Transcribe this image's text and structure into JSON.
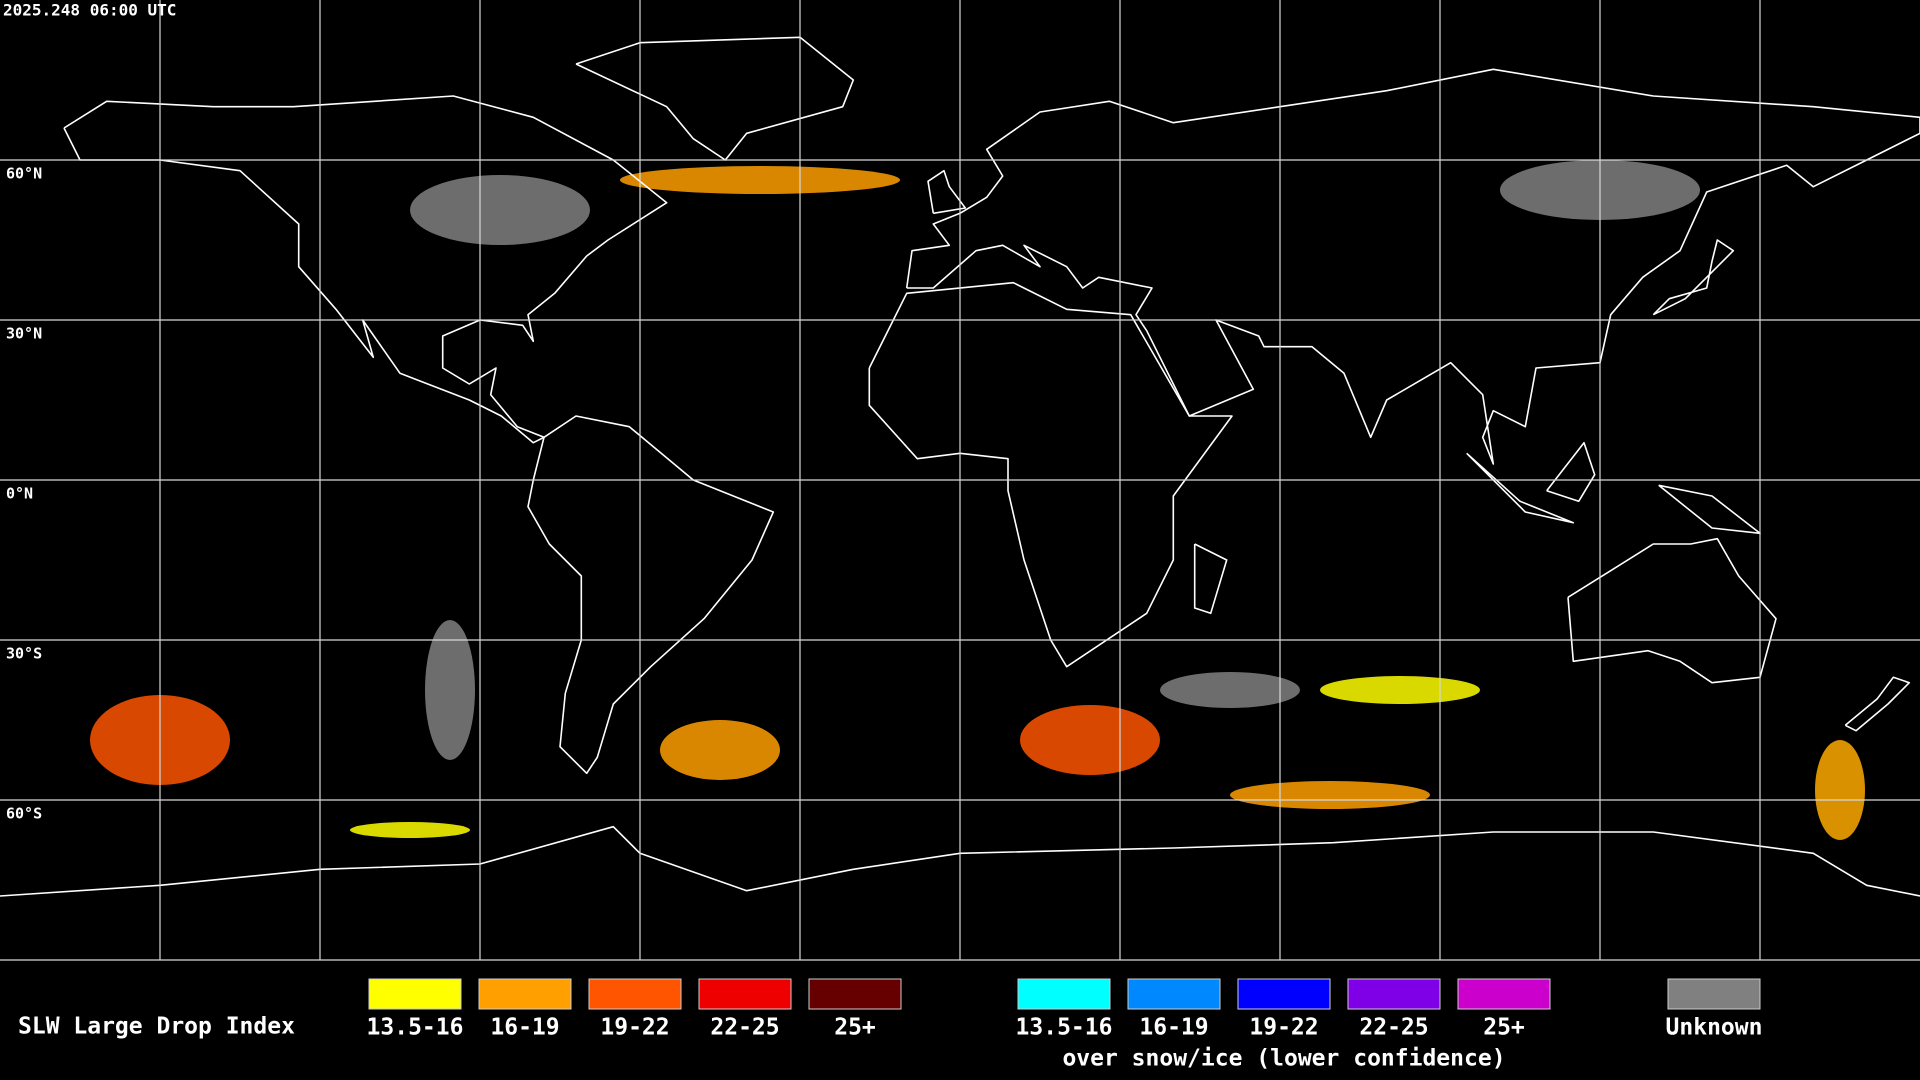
{
  "header": {
    "timestamp": "2025.248 06:00 UTC"
  },
  "map": {
    "latitude_labels": [
      "60°N",
      "30°N",
      "0°N",
      "30°S",
      "60°S"
    ]
  },
  "legend": {
    "title": "SLW Large Drop Index",
    "groups": [
      {
        "items": [
          {
            "label": "13.5-16",
            "color": "#ffff00"
          },
          {
            "label": "16-19",
            "color": "#ff9f00"
          },
          {
            "label": "19-22",
            "color": "#ff5500"
          },
          {
            "label": "22-25",
            "color": "#ee0000"
          },
          {
            "label": "25+",
            "color": "#660000"
          }
        ]
      },
      {
        "items": [
          {
            "label": "13.5-16",
            "color": "#00ffff"
          },
          {
            "label": "16-19",
            "color": "#0088ff"
          },
          {
            "label": "19-22",
            "color": "#0000ff"
          },
          {
            "label": "22-25",
            "color": "#7f00e6"
          },
          {
            "label": "25+",
            "color": "#cc00cc"
          }
        ],
        "note": "over snow/ice (lower confidence)"
      }
    ],
    "unknown": {
      "label": "Unknown",
      "color": "#808080"
    }
  }
}
